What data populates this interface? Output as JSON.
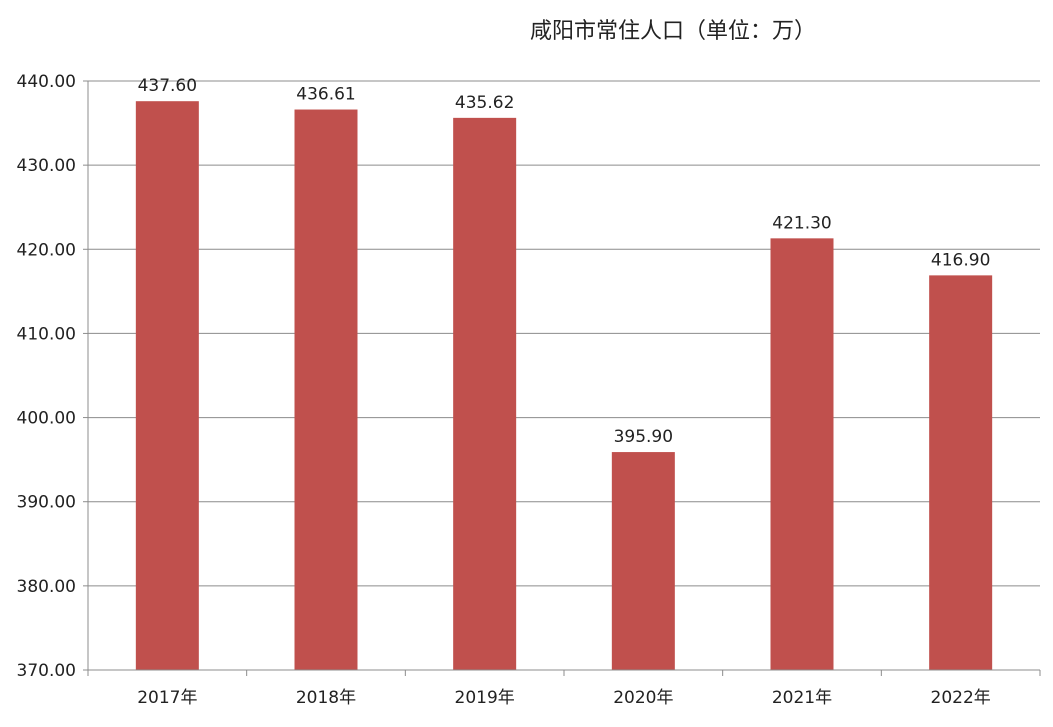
{
  "chart_data": {
    "type": "bar",
    "title": "咸阳市常住人口（单位：万）",
    "categories": [
      "2017年",
      "2018年",
      "2019年",
      "2020年",
      "2021年",
      "2022年"
    ],
    "values": [
      437.6,
      436.61,
      435.62,
      395.9,
      421.3,
      416.9
    ],
    "value_labels": [
      "437.60",
      "436.61",
      "435.62",
      "395.90",
      "421.30",
      "416.90"
    ],
    "xlabel": "",
    "ylabel": "",
    "ylim": [
      370,
      440
    ],
    "yticks": [
      370,
      380,
      390,
      400,
      410,
      420,
      430,
      440
    ],
    "ytick_labels": [
      "370.00",
      "380.00",
      "390.00",
      "400.00",
      "410.00",
      "420.00",
      "430.00",
      "440.00"
    ],
    "grid": true,
    "legend": "none",
    "bar_color": "#c0504d"
  }
}
